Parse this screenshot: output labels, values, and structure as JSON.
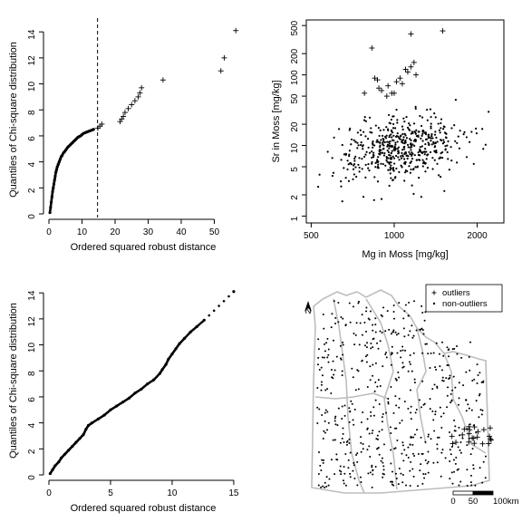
{
  "chart_data": [
    {
      "type": "scatter",
      "xlabel": "Ordered squared robust distance",
      "ylabel": "Quantiles of Chi-square distribution",
      "xlim": [
        0,
        57
      ],
      "ylim": [
        0,
        14.5
      ],
      "xticks": [
        0,
        10,
        20,
        30,
        40,
        50
      ],
      "yticks": [
        0,
        2,
        4,
        6,
        8,
        10,
        12,
        14
      ],
      "cutoff_x": 14.7,
      "series": [
        {
          "marker": "dot",
          "x": [
            0.3,
            0.5,
            0.7,
            0.9,
            1.1,
            1.3,
            1.5,
            1.7,
            1.9,
            2.1,
            2.3,
            2.5,
            2.8,
            3.1,
            3.4,
            3.7,
            4.0,
            4.4,
            4.8,
            5.2,
            5.6,
            6.0,
            6.4,
            6.8,
            7.2,
            7.6,
            8.0,
            8.4,
            8.8,
            9.2,
            9.6,
            10.0,
            10.5,
            11.0,
            11.5,
            12.0,
            12.5,
            13.0,
            13.5
          ],
          "y": [
            0.1,
            0.5,
            0.9,
            1.3,
            1.7,
            2.0,
            2.3,
            2.6,
            2.9,
            3.2,
            3.4,
            3.6,
            3.8,
            4.0,
            4.2,
            4.4,
            4.5,
            4.7,
            4.8,
            4.95,
            5.1,
            5.2,
            5.3,
            5.4,
            5.5,
            5.6,
            5.7,
            5.8,
            5.9,
            5.95,
            6.0,
            6.1,
            6.2,
            6.25,
            6.3,
            6.35,
            6.4,
            6.45,
            6.5
          ]
        },
        {
          "marker": "plus",
          "x": [
            14.8,
            15.4,
            16.0,
            21.5,
            22.0,
            22.5,
            23.0,
            24.0,
            25.0,
            26.0,
            27.0,
            27.5,
            28.0,
            34.5,
            52.0,
            53.0,
            56.5
          ],
          "y": [
            6.6,
            6.75,
            6.9,
            7.1,
            7.3,
            7.5,
            7.8,
            8.1,
            8.4,
            8.7,
            9.0,
            9.3,
            9.7,
            10.3,
            11.0,
            12.0,
            14.1
          ]
        }
      ]
    },
    {
      "type": "scatter",
      "xlabel": "Mg in Moss [mg/kg]",
      "ylabel": "Sr in Moss [mg/kg]",
      "log_scale": true,
      "xlim": [
        480,
        2500
      ],
      "ylim": [
        0.8,
        600
      ],
      "xticks": [
        500,
        1000,
        2000
      ],
      "yticks": [
        1,
        2,
        5,
        10,
        20,
        50,
        100,
        200,
        500
      ],
      "series": [
        {
          "marker": "plus",
          "x": [
            830,
            780,
            850,
            870,
            900,
            950,
            1000,
            1050,
            1070,
            1100,
            1120,
            1150,
            1020,
            980,
            1180,
            1200,
            1500,
            1150,
            880,
            940
          ],
          "y": [
            240,
            55,
            90,
            85,
            60,
            70,
            55,
            90,
            75,
            120,
            110,
            130,
            80,
            55,
            150,
            100,
            420,
            380,
            65,
            50
          ]
        },
        {
          "marker": "dot",
          "note_density": "approx 500 non-outliers clustered around Mg 700-1800, Sr 3-40"
        }
      ]
    },
    {
      "type": "scatter",
      "xlabel": "Ordered squared robust distance",
      "ylabel": "Quantiles of Chi-square distribution",
      "xlim": [
        0,
        15.3
      ],
      "ylim": [
        0,
        14.5
      ],
      "xticks": [
        0,
        5,
        10,
        15
      ],
      "yticks": [
        0,
        2,
        4,
        6,
        8,
        10,
        12,
        14
      ],
      "series": [
        {
          "marker": "dot",
          "x": [
            0.1,
            0.3,
            0.5,
            0.8,
            1.0,
            1.3,
            1.6,
            1.9,
            2.2,
            2.5,
            2.8,
            3.0,
            3.2,
            3.5,
            4.0,
            4.5,
            5.0,
            5.5,
            6.0,
            6.5,
            7.0,
            7.5,
            8.0,
            8.5,
            9.0,
            9.2,
            9.5,
            9.7,
            10.0,
            10.3,
            10.6,
            11.0,
            11.5,
            12.0,
            12.6,
            15.0
          ],
          "y": [
            0.1,
            0.4,
            0.7,
            1.0,
            1.3,
            1.6,
            1.9,
            2.2,
            2.5,
            2.8,
            3.1,
            3.5,
            3.8,
            4.0,
            4.3,
            4.6,
            5.0,
            5.3,
            5.6,
            5.9,
            6.3,
            6.6,
            7.0,
            7.3,
            7.8,
            8.1,
            8.5,
            8.9,
            9.3,
            9.7,
            10.1,
            10.5,
            11.0,
            11.4,
            11.9,
            14.1
          ]
        }
      ]
    },
    {
      "type": "map",
      "legend": [
        {
          "marker": "plus",
          "label": "outliers"
        },
        {
          "marker": "dot",
          "label": "non-outliers"
        }
      ],
      "scale_bar": {
        "labels": [
          "0",
          "50",
          "100km"
        ]
      },
      "north_arrow": "N"
    }
  ]
}
